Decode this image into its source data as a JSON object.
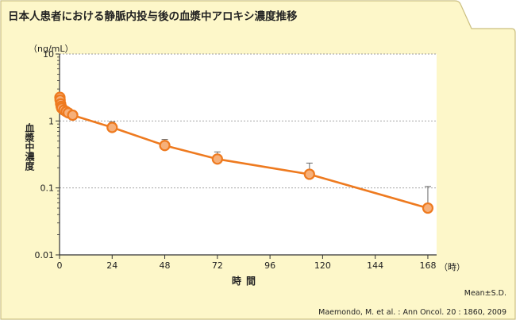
{
  "title": "日本人患者における静脈内投与後の血漿中アロキシ濃度推移",
  "colors": {
    "frame_fill": "#fdf7c9",
    "frame_stroke": "#cbbf80",
    "plot_bg": "#ffffff",
    "series": "#ee7a1f",
    "marker_fill": "#f6b07a",
    "grid": "#9a9a9a",
    "errorbar": "#666666"
  },
  "chart_data": {
    "type": "line",
    "title": "日本人患者における静脈内投与後の血漿中アロキシ濃度推移",
    "ylabel": "血漿中濃度",
    "yunit": "（ng/mL）",
    "xlabel": "時間",
    "xunit": "（時）",
    "yscale": "log",
    "ylim": [
      0.01,
      10
    ],
    "xlim": [
      0,
      172
    ],
    "xticks": [
      0,
      24,
      48,
      72,
      96,
      120,
      144,
      168
    ],
    "yticks": [
      {
        "value": 10,
        "label": "10"
      },
      {
        "value": 1,
        "label": "1"
      },
      {
        "value": 0.1,
        "label": "0.1"
      },
      {
        "value": 0.01,
        "label": "0.01"
      }
    ],
    "grid": "horizontal dotted at 10, 1, 0.1",
    "series": [
      {
        "x": [
          0.17,
          0.25,
          0.5,
          0.75,
          1,
          2,
          3,
          4,
          6,
          24,
          48,
          72,
          114,
          168
        ],
        "y": [
          2.25,
          2.05,
          1.8,
          1.65,
          1.55,
          1.45,
          1.38,
          1.32,
          1.22,
          0.8,
          0.43,
          0.27,
          0.16,
          0.05
        ],
        "err_upper": [
          2.5,
          2.3,
          2.0,
          1.85,
          1.75,
          1.6,
          1.52,
          1.45,
          1.34,
          0.97,
          0.53,
          0.345,
          0.235,
          0.105
        ]
      }
    ],
    "note": "Mean±S.D."
  },
  "source": "Maemondo, M. et al. : Ann Oncol. 20 : 1860, 2009"
}
